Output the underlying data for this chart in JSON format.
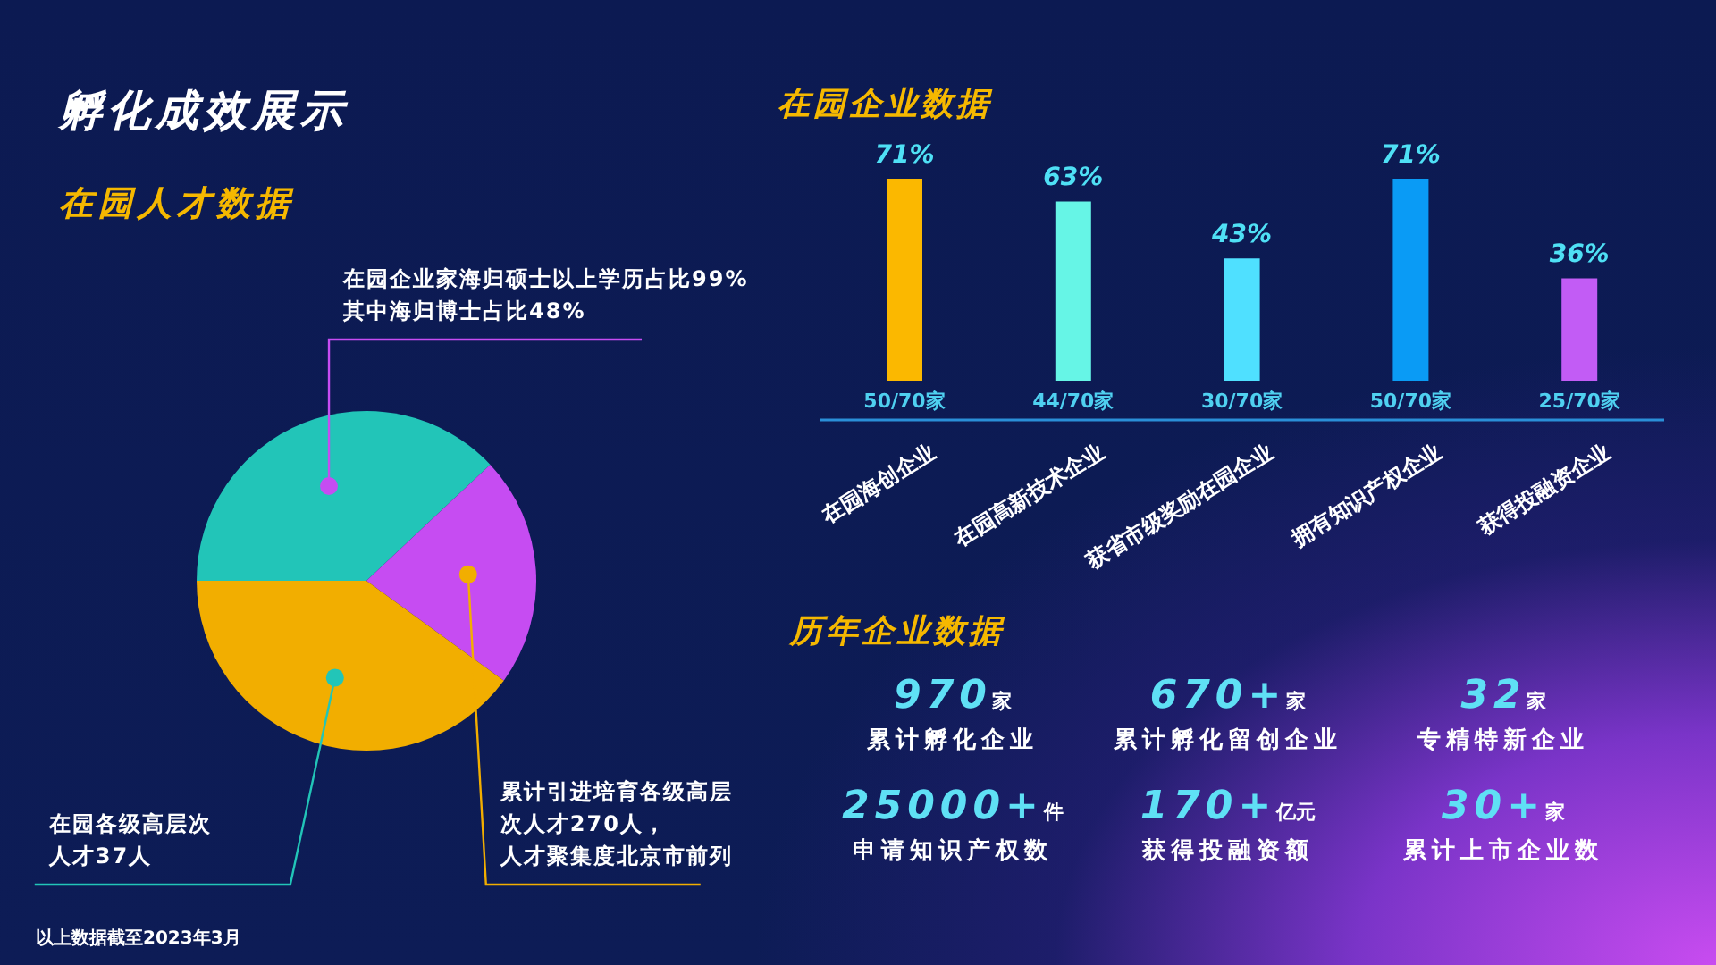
{
  "chart_data": [
    {
      "type": "pie",
      "title": "孵化成效展示",
      "subtitle": "在园人才数据",
      "categories": [
        "在园企业家海归硕士以上学历占比99%其中海归博士占比48%",
        "累计引进培育各级高层次人才270人，人才聚集度北京市前列",
        "在园各级高层次人才37人"
      ],
      "values": [
        38,
        22,
        40
      ],
      "colors": [
        "#22c5b8",
        "#c64cf2",
        "#f2ae00"
      ],
      "annotations": [
        "以上数据截至2023年3月"
      ]
    },
    {
      "type": "bar",
      "title": "在园企业数据",
      "categories": [
        "在园海创企业",
        "在园高新技术企业",
        "获省市级奖励在园企业",
        "拥有知识产权企业",
        "获得投融资企业"
      ],
      "values": [
        71,
        63,
        43,
        71,
        36
      ],
      "colors": [
        "#fbb800",
        "#66f5e6",
        "#4fe0ff",
        "#0a9bf5",
        "#c25cf5"
      ],
      "value_labels": [
        "71%",
        "63%",
        "43%",
        "71%",
        "36%"
      ],
      "annotations": [
        "50/70家",
        "44/70家",
        "30/70家",
        "50/70家",
        "25/70家"
      ]
    },
    {
      "type": "other",
      "title": "历年企业数据",
      "categories": [
        "累计孵化企业",
        "累计孵化留创企业",
        "专精特新企业",
        "申请知识产权数",
        "获得投融资额",
        "累计上市企业数"
      ],
      "value_labels": [
        "970家",
        "670+家",
        "32家",
        "25000+件",
        "170+亿元",
        "30+家"
      ],
      "color": "#5fe0f5"
    }
  ]
}
